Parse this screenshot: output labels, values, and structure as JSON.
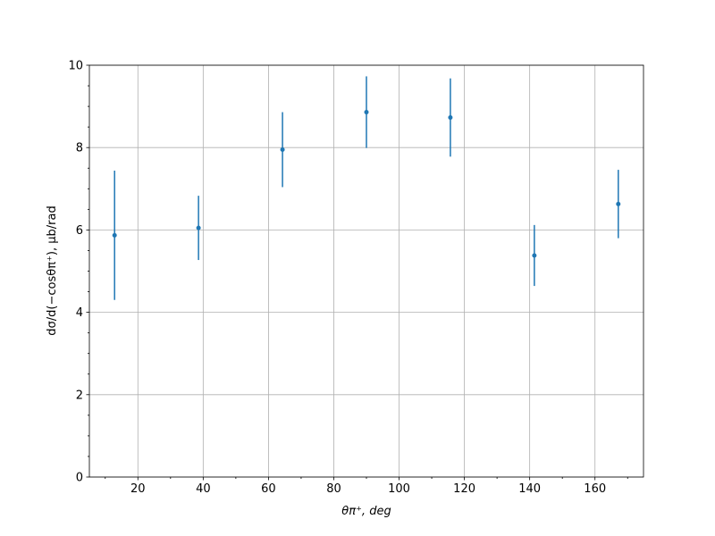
{
  "chart_data": {
    "type": "errorbar",
    "xlabel": "θπ⁺, deg",
    "ylabel": "dσ/d(−cosθπ⁺), μb/rad",
    "x": [
      12.86,
      38.57,
      64.29,
      90,
      115.71,
      141.43,
      167.14
    ],
    "series": [
      {
        "color": "#1f77b4",
        "values": [
          5.87,
          6.05,
          7.95,
          8.86,
          8.73,
          5.38,
          6.63
        ],
        "errors": [
          1.57,
          0.78,
          0.91,
          0.87,
          0.95,
          0.74,
          0.83
        ]
      }
    ],
    "xlim": [
      5.14,
      174.86
    ],
    "ylim": [
      0,
      10
    ],
    "xticks": [
      20,
      40,
      60,
      80,
      100,
      120,
      140,
      160
    ],
    "yticks": [
      0,
      2,
      4,
      6,
      8,
      10
    ],
    "xminorticks": [
      10,
      30,
      50,
      70,
      90,
      110,
      130,
      150,
      170
    ],
    "yminorticks": [
      0.5,
      1,
      1.5,
      2.5,
      3,
      3.5,
      4.5,
      5,
      5.5,
      6.5,
      7,
      7.5,
      8.5,
      9,
      9.5
    ],
    "grid": true
  }
}
